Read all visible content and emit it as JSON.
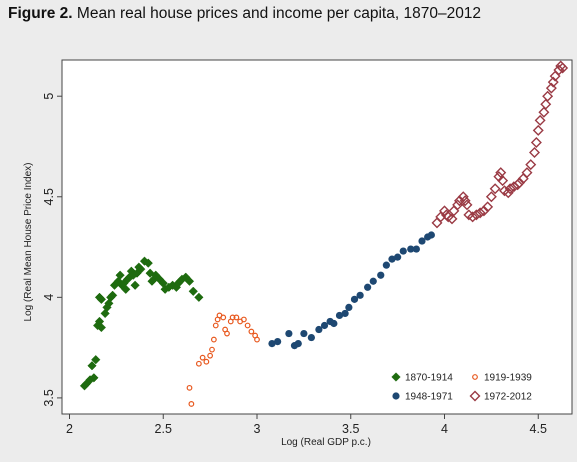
{
  "figure": {
    "label": "Figure 2.",
    "caption": "Mean real house prices and income per capita, 1870–2012"
  },
  "colors": {
    "background": "#ececec",
    "plot_background": "#ffffff",
    "series_1870_1914": "#1e6b0f",
    "series_1919_1939": "#e8581e",
    "series_1948_1971": "#1e4872",
    "series_1972_2012": "#9a3a44"
  },
  "chart_data": {
    "type": "scatter",
    "title": "",
    "xlabel": "Log (Real GDP p.c.)",
    "ylabel": "Log (Real Mean House Price Index)",
    "xlim": [
      1.96,
      4.68
    ],
    "ylim": [
      3.42,
      5.18
    ],
    "xticks": [
      {
        "value": 2,
        "label": "2"
      },
      {
        "value": 2.5,
        "label": "2.5"
      },
      {
        "value": 3,
        "label": "3"
      },
      {
        "value": 3.5,
        "label": "3.5"
      },
      {
        "value": 4,
        "label": "4"
      },
      {
        "value": 4.5,
        "label": "4.5"
      }
    ],
    "yticks": [
      {
        "value": 3.5,
        "label": "3.5"
      },
      {
        "value": 4,
        "label": "4"
      },
      {
        "value": 4.5,
        "label": "4.5"
      },
      {
        "value": 5,
        "label": "5"
      }
    ],
    "grid": false,
    "legend_position": "bottom-right",
    "series": [
      {
        "name": "1870-1914",
        "marker": "filled-diamond",
        "color": "#1e6b0f",
        "points": [
          [
            2.08,
            3.56
          ],
          [
            2.09,
            3.57
          ],
          [
            2.11,
            3.59
          ],
          [
            2.13,
            3.6
          ],
          [
            2.12,
            3.66
          ],
          [
            2.14,
            3.69
          ],
          [
            2.15,
            3.86
          ],
          [
            2.16,
            3.88
          ],
          [
            2.17,
            3.85
          ],
          [
            2.16,
            4.0
          ],
          [
            2.17,
            3.99
          ],
          [
            2.19,
            3.92
          ],
          [
            2.2,
            3.95
          ],
          [
            2.21,
            3.97
          ],
          [
            2.22,
            4.0
          ],
          [
            2.23,
            4.01
          ],
          [
            2.24,
            4.06
          ],
          [
            2.26,
            4.08
          ],
          [
            2.27,
            4.11
          ],
          [
            2.28,
            4.06
          ],
          [
            2.29,
            4.07
          ],
          [
            2.3,
            4.04
          ],
          [
            2.31,
            4.09
          ],
          [
            2.32,
            4.1
          ],
          [
            2.33,
            4.13
          ],
          [
            2.34,
            4.11
          ],
          [
            2.35,
            4.06
          ],
          [
            2.36,
            4.12
          ],
          [
            2.37,
            4.15
          ],
          [
            2.38,
            4.14
          ],
          [
            2.4,
            4.18
          ],
          [
            2.42,
            4.17
          ],
          [
            2.43,
            4.12
          ],
          [
            2.44,
            4.08
          ],
          [
            2.45,
            4.09
          ],
          [
            2.46,
            4.11
          ],
          [
            2.48,
            4.09
          ],
          [
            2.5,
            4.07
          ],
          [
            2.51,
            4.04
          ],
          [
            2.53,
            4.05
          ],
          [
            2.55,
            4.06
          ],
          [
            2.57,
            4.05
          ],
          [
            2.58,
            4.07
          ],
          [
            2.59,
            4.08
          ],
          [
            2.6,
            4.09
          ],
          [
            2.62,
            4.1
          ],
          [
            2.64,
            4.08
          ],
          [
            2.66,
            4.03
          ],
          [
            2.69,
            4.0
          ]
        ]
      },
      {
        "name": "1919-1939",
        "marker": "hollow-circle",
        "color": "#e8581e",
        "points": [
          [
            2.64,
            3.55
          ],
          [
            2.65,
            3.47
          ],
          [
            2.69,
            3.67
          ],
          [
            2.71,
            3.7
          ],
          [
            2.73,
            3.68
          ],
          [
            2.75,
            3.71
          ],
          [
            2.76,
            3.74
          ],
          [
            2.77,
            3.79
          ],
          [
            2.78,
            3.86
          ],
          [
            2.79,
            3.89
          ],
          [
            2.8,
            3.91
          ],
          [
            2.82,
            3.9
          ],
          [
            2.83,
            3.84
          ],
          [
            2.84,
            3.82
          ],
          [
            2.86,
            3.88
          ],
          [
            2.87,
            3.9
          ],
          [
            2.89,
            3.9
          ],
          [
            2.91,
            3.88
          ],
          [
            2.93,
            3.89
          ],
          [
            2.95,
            3.86
          ],
          [
            2.97,
            3.83
          ],
          [
            2.99,
            3.81
          ],
          [
            3.0,
            3.79
          ]
        ]
      },
      {
        "name": "1948-1971",
        "marker": "filled-circle",
        "color": "#1e4872",
        "points": [
          [
            3.08,
            3.77
          ],
          [
            3.11,
            3.78
          ],
          [
            3.17,
            3.82
          ],
          [
            3.2,
            3.76
          ],
          [
            3.22,
            3.77
          ],
          [
            3.25,
            3.82
          ],
          [
            3.29,
            3.8
          ],
          [
            3.33,
            3.84
          ],
          [
            3.36,
            3.86
          ],
          [
            3.39,
            3.88
          ],
          [
            3.41,
            3.87
          ],
          [
            3.44,
            3.91
          ],
          [
            3.47,
            3.92
          ],
          [
            3.49,
            3.95
          ],
          [
            3.52,
            3.99
          ],
          [
            3.55,
            4.01
          ],
          [
            3.59,
            4.05
          ],
          [
            3.62,
            4.08
          ],
          [
            3.66,
            4.11
          ],
          [
            3.69,
            4.16
          ],
          [
            3.72,
            4.19
          ],
          [
            3.75,
            4.2
          ],
          [
            3.78,
            4.23
          ],
          [
            3.82,
            4.24
          ],
          [
            3.85,
            4.24
          ],
          [
            3.88,
            4.28
          ],
          [
            3.91,
            4.3
          ],
          [
            3.93,
            4.31
          ]
        ]
      },
      {
        "name": "1972-2012",
        "marker": "hollow-diamond",
        "color": "#9a3a44",
        "points": [
          [
            3.96,
            4.37
          ],
          [
            3.98,
            4.4
          ],
          [
            4.0,
            4.43
          ],
          [
            4.01,
            4.41
          ],
          [
            4.02,
            4.4
          ],
          [
            4.04,
            4.39
          ],
          [
            4.05,
            4.43
          ],
          [
            4.07,
            4.46
          ],
          [
            4.08,
            4.48
          ],
          [
            4.1,
            4.5
          ],
          [
            4.11,
            4.48
          ],
          [
            4.12,
            4.46
          ],
          [
            4.13,
            4.41
          ],
          [
            4.15,
            4.4
          ],
          [
            4.17,
            4.41
          ],
          [
            4.19,
            4.42
          ],
          [
            4.21,
            4.43
          ],
          [
            4.23,
            4.45
          ],
          [
            4.25,
            4.5
          ],
          [
            4.27,
            4.54
          ],
          [
            4.29,
            4.6
          ],
          [
            4.3,
            4.62
          ],
          [
            4.31,
            4.58
          ],
          [
            4.32,
            4.53
          ],
          [
            4.34,
            4.52
          ],
          [
            4.35,
            4.54
          ],
          [
            4.37,
            4.55
          ],
          [
            4.39,
            4.56
          ],
          [
            4.4,
            4.57
          ],
          [
            4.42,
            4.59
          ],
          [
            4.44,
            4.62
          ],
          [
            4.46,
            4.66
          ],
          [
            4.48,
            4.72
          ],
          [
            4.49,
            4.77
          ],
          [
            4.5,
            4.83
          ],
          [
            4.51,
            4.88
          ],
          [
            4.53,
            4.92
          ],
          [
            4.54,
            4.96
          ],
          [
            4.55,
            5.0
          ],
          [
            4.57,
            5.04
          ],
          [
            4.58,
            5.07
          ],
          [
            4.59,
            5.1
          ],
          [
            4.61,
            5.13
          ],
          [
            4.62,
            5.15
          ],
          [
            4.63,
            5.14
          ]
        ]
      }
    ]
  }
}
